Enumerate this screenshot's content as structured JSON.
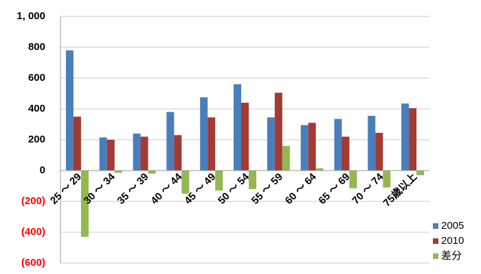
{
  "chart_data": {
    "type": "bar",
    "categories": [
      "25 ～ 29",
      "30 ～ 34",
      "35 ～ 39",
      "40 ～ 44",
      "45 ～ 49",
      "50 ～ 54",
      "55 ～ 59",
      "60 ～ 64",
      "65 ～ 69",
      "70 ～ 74",
      "75歳以上"
    ],
    "series": [
      {
        "name": "2005",
        "color": "#4a7ebb",
        "values": [
          780,
          215,
          240,
          380,
          475,
          560,
          345,
          295,
          335,
          355,
          435
        ]
      },
      {
        "name": "2010",
        "color": "#a33a33",
        "values": [
          350,
          200,
          220,
          230,
          345,
          440,
          505,
          310,
          220,
          245,
          405
        ]
      },
      {
        "name": "差分",
        "color": "#93b850",
        "values": [
          -430,
          -15,
          -20,
          -150,
          -130,
          -120,
          160,
          15,
          -115,
          -110,
          -30
        ]
      }
    ],
    "ylim": [
      -600,
      1000
    ],
    "yticks": [
      {
        "value": -600,
        "label": "(600)"
      },
      {
        "value": -400,
        "label": "(400)"
      },
      {
        "value": -200,
        "label": "(200)"
      },
      0,
      200,
      400,
      600,
      800,
      {
        "value": 1000,
        "label": "1, 000"
      }
    ],
    "negative_tick_color": "#ff0000",
    "grid": true,
    "legend": "lower right"
  }
}
